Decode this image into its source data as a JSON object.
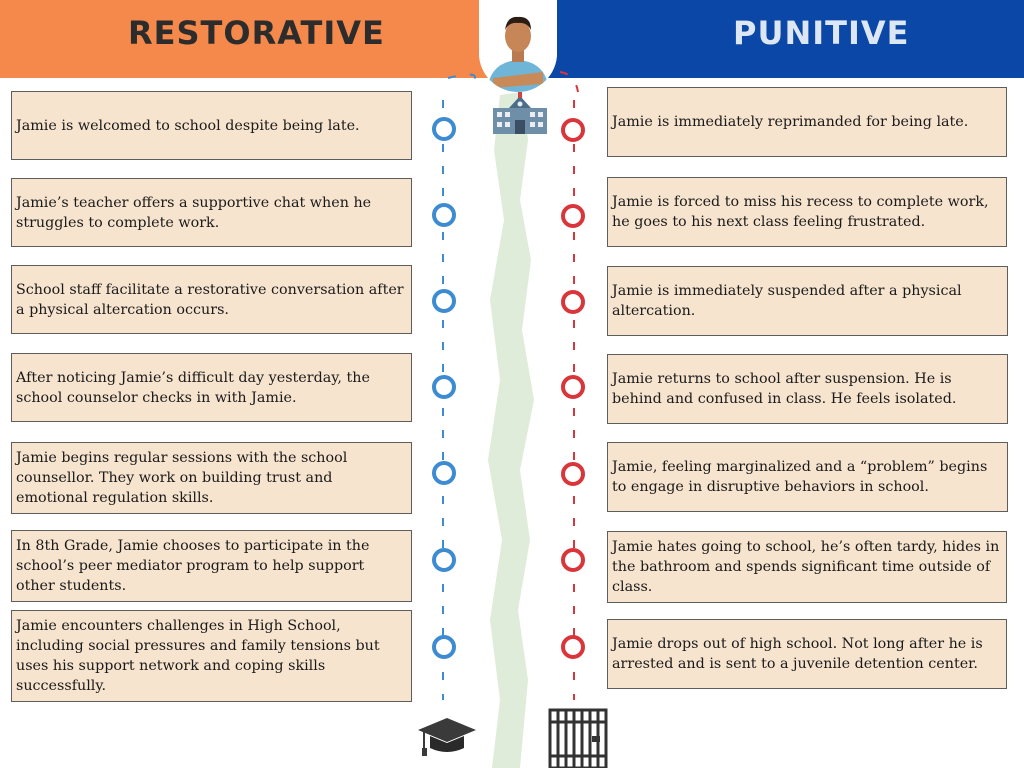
{
  "header": {
    "left_title": "RESTORATIVE",
    "right_title": "PUNITIVE",
    "left_color": "#f5894b",
    "right_color": "#0b47a6"
  },
  "icons": {
    "top_center": "school-building-icon",
    "avatar": "student-avatar",
    "bottom_left": "graduation-cap-icon",
    "bottom_right": "jail-bars-icon"
  },
  "timeline_colors": {
    "restorative": "#3d8bd0",
    "punitive": "#d9363b"
  },
  "restorative": [
    "Jamie is welcomed to school despite being late.",
    "Jamie’s teacher offers a supportive chat when he struggles to complete work.",
    "School staff facilitate a restorative conversation after a physical altercation occurs.",
    "After noticing Jamie’s difficult day yesterday, the school counselor checks in with Jamie.",
    "Jamie begins regular sessions with the school counsellor. They work on building trust and emotional regulation skills.",
    "In 8th Grade, Jamie chooses to participate in the school’s peer mediator program to help support other students.",
    "Jamie encounters challenges in High School, including social pressures and family tensions but uses his support network and coping skills successfully."
  ],
  "punitive": [
    "Jamie is immediately reprimanded for being late.",
    "Jamie is forced to miss his recess to complete work, he goes to his next class feeling frustrated.",
    "Jamie is immediately suspended after a physical altercation.",
    "Jamie returns to school after suspension. He is behind and confused in class. He feels isolated.",
    "Jamie, feeling marginalized and a “problem” begins to engage in disruptive behaviors in school.",
    "Jamie hates going to school, he’s often tardy, hides in the bathroom and spends significant time outside of class.",
    "Jamie drops out of high school. Not long after he is arrested and is sent to a juvenile detention center."
  ]
}
